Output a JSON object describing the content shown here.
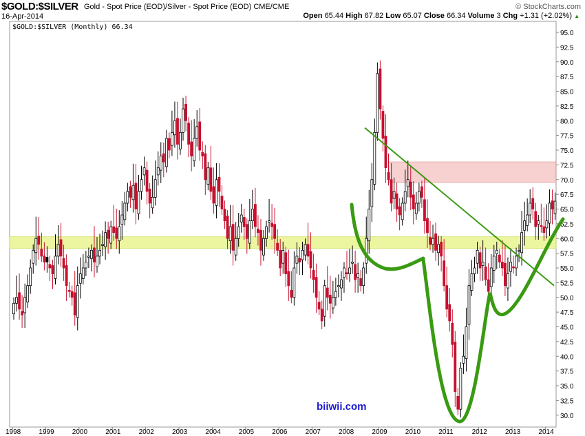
{
  "header": {
    "symbol": "$GOLD:$SILVER",
    "description": "Gold - Spot Price (EOD)/Silver - Spot Price (EOD)  CME/CME",
    "source": "© StockCharts.com",
    "date": "16-Apr-2014",
    "open_label": "Open",
    "open": "65.44",
    "high_label": "High",
    "high": "67.82",
    "low_label": "Low",
    "low": "65.07",
    "close_label": "Close",
    "close": "66.34",
    "volume_label": "Volume",
    "volume": "3",
    "chg_label": "Chg",
    "chg": "+1.31 (+2.02%)",
    "chg_arrow": "▲"
  },
  "legend": "$GOLD:$SILVER (Monthly) 66.34",
  "watermark": "biiwii.com",
  "colors": {
    "up": "#000000",
    "down": "#c8102e",
    "band_yellow": "#e8f58a",
    "band_red": "#f4b8b8",
    "trend": "#3a9a12"
  },
  "chart_data": {
    "type": "candlestick",
    "title": "$GOLD:$SILVER (Monthly)",
    "ylim": [
      29,
      96.5
    ],
    "yticks": [
      30.0,
      32.5,
      35.0,
      37.5,
      40.0,
      42.5,
      45.0,
      47.5,
      50.0,
      52.5,
      55.0,
      57.5,
      60.0,
      62.5,
      65.0,
      67.5,
      70.0,
      72.5,
      75.0,
      77.5,
      80.0,
      82.5,
      85.0,
      87.5,
      90.0,
      92.5,
      95.0
    ],
    "xticks": [
      "1998",
      "1999",
      "2000",
      "2001",
      "2002",
      "2003",
      "2004",
      "2005",
      "2006",
      "2007",
      "2008",
      "2009",
      "2010",
      "2011",
      "2012",
      "2013",
      "2014"
    ],
    "start": "1998-01",
    "monthly_close": [
      49,
      50,
      48,
      47,
      50,
      52,
      55,
      58,
      60,
      59,
      57,
      56,
      56,
      55,
      54,
      57,
      59,
      57,
      55,
      52,
      51,
      50,
      47,
      52,
      54,
      55,
      56,
      57,
      58,
      56,
      57,
      58,
      59,
      61,
      60,
      62,
      61,
      60,
      62,
      64,
      66,
      68,
      67,
      69,
      65,
      68,
      70,
      72,
      68,
      66,
      67,
      70,
      72,
      74,
      73,
      77,
      75,
      78,
      80,
      76,
      78,
      82,
      80,
      76,
      74,
      77,
      79,
      75,
      74,
      70,
      72,
      68,
      66,
      70,
      68,
      65,
      63,
      60,
      62,
      58,
      60,
      62,
      64,
      62,
      60,
      63,
      65,
      62,
      61,
      58,
      60,
      62,
      63,
      62,
      60,
      58,
      55,
      58,
      54,
      52,
      50,
      55,
      57,
      56,
      58,
      59,
      57,
      55,
      53,
      50,
      48,
      46,
      52,
      50,
      49,
      50,
      51,
      52,
      53,
      55,
      54,
      55,
      56,
      53,
      54,
      52,
      55,
      60,
      65,
      70,
      78,
      88,
      82,
      77,
      72,
      70,
      66,
      68,
      65,
      64,
      66,
      68,
      70,
      67,
      65,
      66,
      68,
      67,
      63,
      61,
      59,
      60,
      58,
      59,
      57,
      52,
      48,
      46,
      42,
      34,
      31,
      38,
      40,
      45,
      52,
      54,
      55,
      58,
      55,
      56,
      53,
      51,
      55,
      57,
      58,
      56,
      55,
      52,
      54,
      56,
      55,
      57,
      58,
      61,
      63,
      64,
      66,
      65,
      62,
      63,
      62,
      61,
      63,
      66,
      65,
      66.34
    ],
    "bands": [
      {
        "name": "support",
        "from": 58.3,
        "to": 60.3
      },
      {
        "name": "resistance",
        "from": 69.5,
        "to": 73.0,
        "start": "2009-04"
      }
    ],
    "trendline": {
      "from": [
        "2008-08",
        78.8
      ],
      "to": [
        "2014-04",
        52.0
      ]
    }
  }
}
